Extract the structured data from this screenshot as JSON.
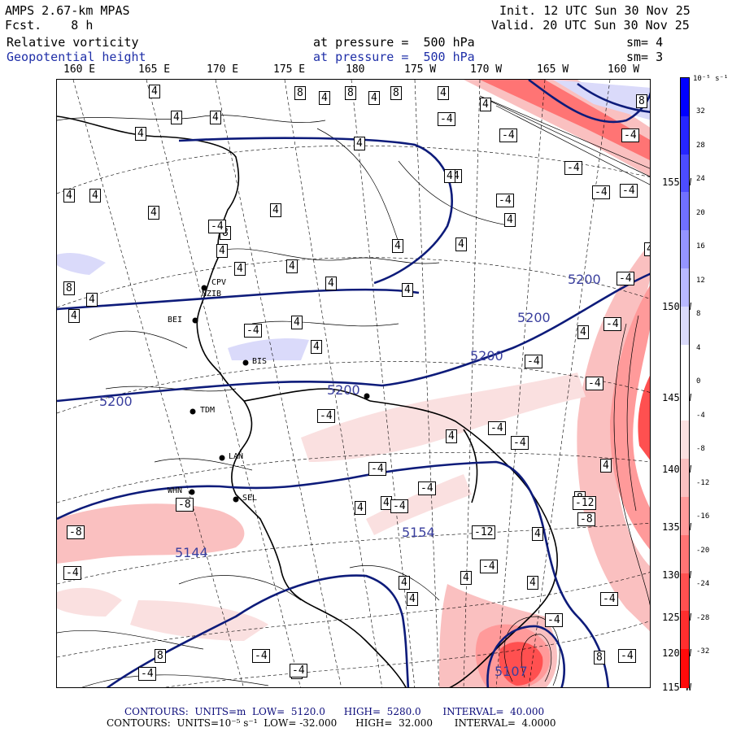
{
  "header": {
    "model": "AMPS 2.67-km MPAS",
    "forecast_label": "Fcst.",
    "forecast_hours": "8 h",
    "init_label": "Init.",
    "init_time": "12 UTC Sun 30 Nov 25",
    "valid_label": "Valid.",
    "valid_time": "20 UTC Sun 30 Nov 25",
    "field1": "Relative vorticity",
    "field1_level": "at pressure =  500 hPa",
    "field1_sm": "sm= 4",
    "field2": "Geopotential height",
    "field2_level": "at pressure =  500 hPa",
    "field2_sm": "sm= 3"
  },
  "longitude_labels": [
    "160 E",
    "165 E",
    "170 E",
    "175 E",
    "180",
    "175 W",
    "170 W",
    "165 W",
    "160 W"
  ],
  "latitude_labels": [
    "155 W",
    "150 W",
    "145 W",
    "140 W",
    "135 W",
    "130 W",
    "125 W",
    "120 W",
    "115 W"
  ],
  "colorbar": {
    "unit": "10⁻⁵ s⁻¹",
    "ticks": [
      "32",
      "28",
      "24",
      "20",
      "16",
      "12",
      "8",
      "4",
      "0",
      "-4",
      "-8",
      "-12",
      "-16",
      "-20",
      "-24",
      "-28",
      "-32"
    ],
    "colors": [
      "#0000ff",
      "#2626ff",
      "#4c4cff",
      "#7070ff",
      "#9494ff",
      "#b8b8ff",
      "#dadafa",
      "#ffffff",
      "#ffffff",
      "#fae0e0",
      "#fac0c0",
      "#ff9a9a",
      "#ff7474",
      "#ff5050",
      "#ff2e2e",
      "#ff0a0a"
    ]
  },
  "map": {
    "height_labels": [
      "5200",
      "5200",
      "5200",
      "5200",
      "5200",
      "5144",
      "5154",
      "5107"
    ],
    "station_labels": [
      "BIS",
      "TDM",
      "LAN",
      "WHN",
      "SEL",
      "CPV",
      "NZIB",
      "BEI"
    ],
    "vorticity_labels": [
      "4",
      "-4",
      "8",
      "-8",
      "-12"
    ]
  },
  "footer": {
    "line1": "CONTOURS:  UNITS=m  LOW=  5120.0      HIGH=  5280.0       INTERVAL=  40.000",
    "line2": "CONTOURS:  UNITS=10⁻⁵ s⁻¹  LOW= -32.000      HIGH=  32.000       INTERVAL=  4.0000"
  }
}
